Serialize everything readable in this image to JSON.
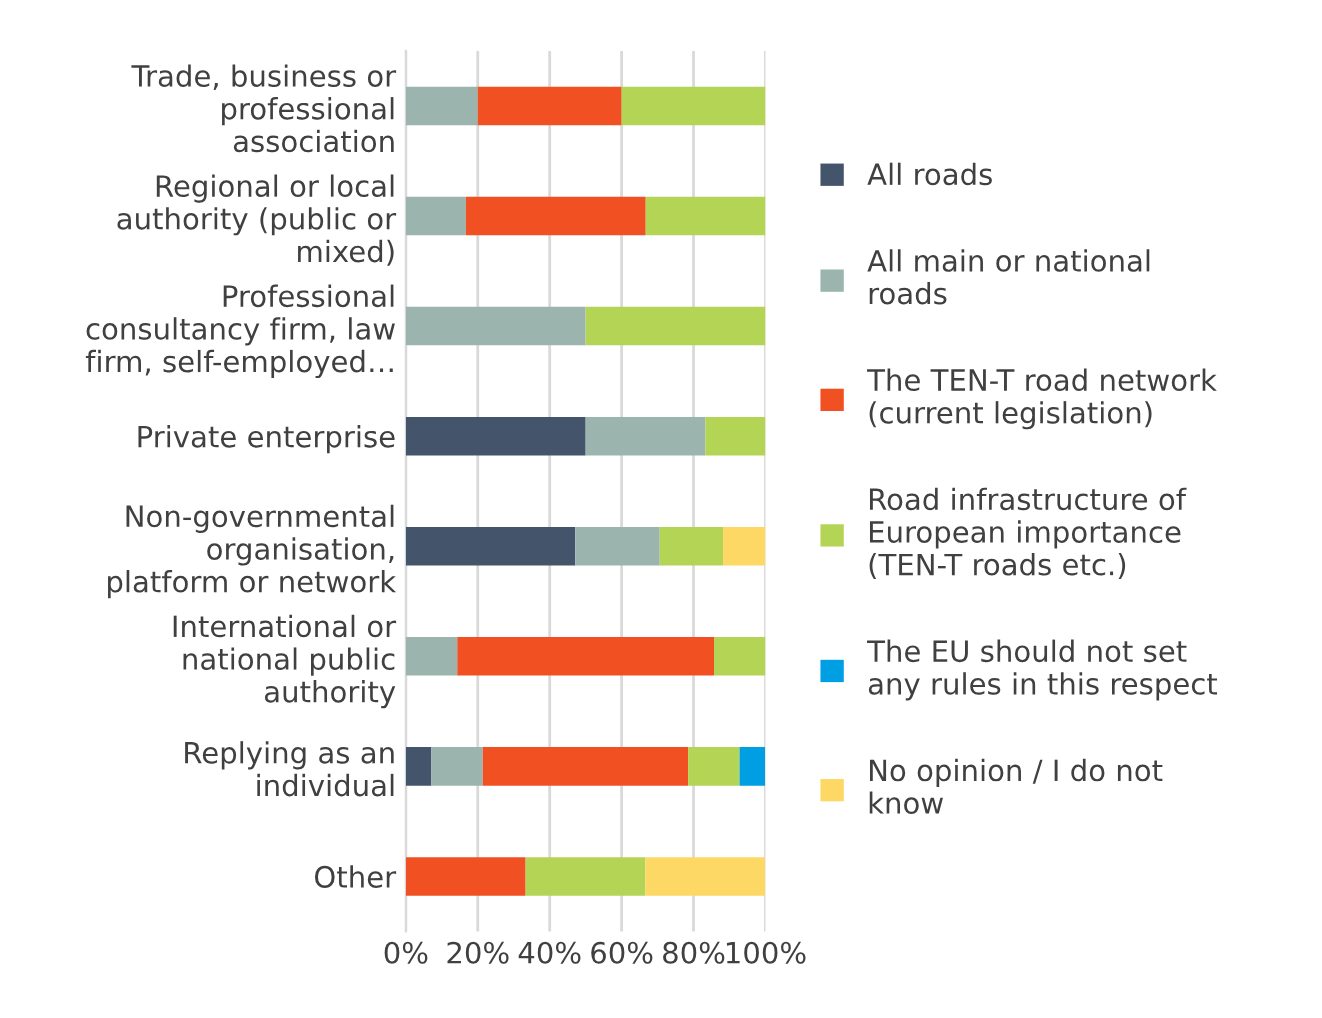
{
  "chart_data": {
    "type": "bar",
    "orientation": "horizontal",
    "stacked": true,
    "categories": [
      "Trade, business or\nprofessional\nassociation",
      "Regional or local\nauthority (public or\nmixed)",
      "Professional\nconsultancy firm, law\nfirm, self-employed…",
      "Private enterprise",
      "Non-governmental\norganisation,\nplatform or network",
      "International or\nnational public\nauthority",
      "Replying as an\nindividual",
      "Other"
    ],
    "series": [
      {
        "name": "All roads",
        "color": "#44546a",
        "values": [
          0,
          0,
          0,
          50,
          47.1,
          0,
          7.1,
          0
        ]
      },
      {
        "name": "All main or national\nroads",
        "color": "#9bb5ae",
        "values": [
          20,
          16.7,
          50,
          33.3,
          23.5,
          14.3,
          14.3,
          0
        ]
      },
      {
        "name": "The TEN-T road network\n(current legislation)",
        "color": "#f15022",
        "values": [
          40,
          50,
          0,
          0,
          0,
          71.4,
          57.1,
          33.3
        ]
      },
      {
        "name": "Road infrastructure of\nEuropean importance\n(TEN-T roads etc.)",
        "color": "#b3d454",
        "values": [
          40,
          33.3,
          50,
          16.7,
          17.6,
          14.3,
          14.3,
          33.3
        ]
      },
      {
        "name": "The EU should not set\nany rules in this respect",
        "color": "#009fe3",
        "values": [
          0,
          0,
          0,
          0,
          0,
          0,
          7.1,
          0
        ]
      },
      {
        "name": "No opinion / I do not\nknow",
        "color": "#fdd865",
        "values": [
          0,
          0,
          0,
          0,
          11.8,
          0,
          0,
          33.3
        ]
      }
    ],
    "xlim": [
      0,
      100
    ],
    "xticks": [
      {
        "value": 0,
        "label": "0%"
      },
      {
        "value": 20,
        "label": "20%"
      },
      {
        "value": 40,
        "label": "40%"
      },
      {
        "value": 60,
        "label": "60%"
      },
      {
        "value": 80,
        "label": "80%"
      },
      {
        "value": 100,
        "label": "100%"
      }
    ],
    "grid": "x",
    "legend": "right"
  }
}
